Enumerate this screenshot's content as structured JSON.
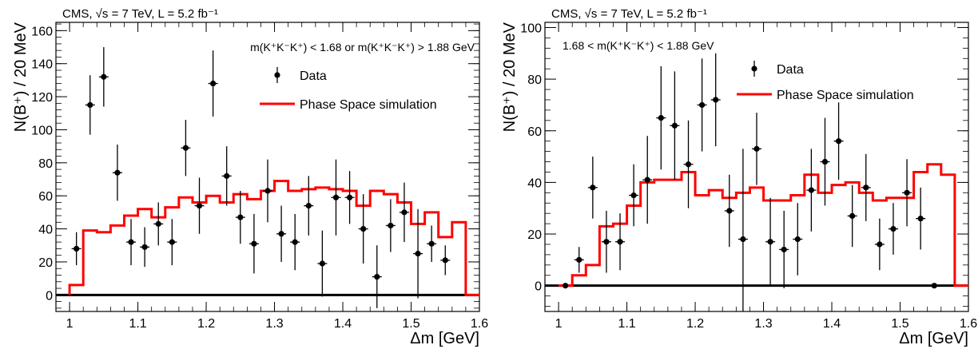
{
  "chart_data": [
    {
      "type": "scatter",
      "header": "CMS, √s = 7 TeV, L = 5.2 fb⁻¹",
      "selection": "m(K⁺K⁻K⁺) < 1.68 or m(K⁺K⁻K⁺) > 1.88 GeV",
      "xlabel": "Δm [GeV]",
      "ylabel": "N(B⁺) / 20 MeV",
      "xlim": [
        0.98,
        1.6
      ],
      "ylim": [
        -10,
        165
      ],
      "xticks": [
        1,
        1.1,
        1.2,
        1.3,
        1.4,
        1.5,
        1.6
      ],
      "xtick_labels": [
        "1",
        "1.1",
        "1.2",
        "1.3",
        "1.4",
        "1.5",
        "1.6"
      ],
      "yticks": [
        0,
        20,
        40,
        60,
        80,
        100,
        120,
        140,
        160
      ],
      "ytick_labels": [
        "0",
        "20",
        "40",
        "60",
        "80",
        "100",
        "120",
        "140",
        "160"
      ],
      "legend": [
        "Data",
        "Phase Space simulation"
      ],
      "series": [
        {
          "name": "Data",
          "x": [
            1.01,
            1.03,
            1.05,
            1.07,
            1.09,
            1.11,
            1.13,
            1.15,
            1.17,
            1.19,
            1.21,
            1.23,
            1.25,
            1.27,
            1.29,
            1.31,
            1.33,
            1.35,
            1.37,
            1.39,
            1.41,
            1.43,
            1.45,
            1.47,
            1.49,
            1.51,
            1.53,
            1.55
          ],
          "y": [
            28,
            115,
            132,
            74,
            32,
            29,
            43,
            32,
            89,
            54,
            128,
            72,
            47,
            31,
            63,
            37,
            32,
            54,
            19,
            59,
            59,
            40,
            11,
            42,
            50,
            25,
            31,
            21
          ],
          "err": [
            10,
            18,
            18,
            17,
            14,
            12,
            13,
            14,
            17,
            17,
            20,
            18,
            16,
            18,
            19,
            17,
            17,
            18,
            20,
            23,
            16,
            21,
            19,
            16,
            18,
            27,
            11,
            9
          ]
        },
        {
          "name": "Phase Space simulation",
          "bin_edges": [
            1.0,
            1.02,
            1.04,
            1.06,
            1.08,
            1.1,
            1.12,
            1.14,
            1.16,
            1.18,
            1.2,
            1.22,
            1.24,
            1.26,
            1.28,
            1.3,
            1.32,
            1.34,
            1.36,
            1.38,
            1.4,
            1.42,
            1.44,
            1.46,
            1.48,
            1.5,
            1.52,
            1.54,
            1.56,
            1.58
          ],
          "values": [
            6,
            39,
            38,
            42,
            48,
            52,
            47,
            53,
            59,
            56,
            60,
            56,
            61,
            58,
            63,
            69,
            63,
            64,
            65,
            64,
            63,
            54,
            63,
            61,
            56,
            43,
            50,
            35,
            44,
            0
          ]
        }
      ]
    },
    {
      "type": "scatter",
      "header": "CMS, √s = 7 TeV, L = 5.2 fb⁻¹",
      "selection": "1.68 < m(K⁺K⁻K⁺) < 1.88 GeV",
      "xlabel": "Δm [GeV]",
      "ylabel": "N(B⁺) / 20 MeV",
      "xlim": [
        0.98,
        1.6
      ],
      "ylim": [
        -10,
        102
      ],
      "xticks": [
        1,
        1.1,
        1.2,
        1.3,
        1.4,
        1.5,
        1.6
      ],
      "xtick_labels": [
        "1",
        "1.1",
        "1.2",
        "1.3",
        "1.4",
        "1.5",
        "1.6"
      ],
      "yticks": [
        0,
        20,
        40,
        60,
        80,
        100
      ],
      "ytick_labels": [
        "0",
        "20",
        "40",
        "60",
        "80",
        "100"
      ],
      "legend": [
        "Data",
        "Phase Space simulation"
      ],
      "series": [
        {
          "name": "Data",
          "x": [
            1.01,
            1.03,
            1.05,
            1.07,
            1.09,
            1.11,
            1.13,
            1.15,
            1.17,
            1.19,
            1.21,
            1.23,
            1.25,
            1.27,
            1.29,
            1.31,
            1.33,
            1.35,
            1.37,
            1.39,
            1.41,
            1.43,
            1.45,
            1.47,
            1.49,
            1.51,
            1.53,
            1.55
          ],
          "y": [
            0,
            10,
            38,
            17,
            17,
            35,
            41,
            65,
            62,
            47,
            70,
            72,
            29,
            18,
            53,
            17,
            14,
            18,
            37,
            48,
            56,
            27,
            38,
            16,
            22,
            36,
            26,
            0
          ],
          "err": [
            0,
            5,
            12,
            12,
            11,
            12,
            17,
            20,
            21,
            17,
            18,
            18,
            14,
            35,
            14,
            17,
            15,
            14,
            16,
            17,
            15,
            12,
            13,
            10,
            10,
            13,
            12,
            0
          ]
        },
        {
          "name": "Phase Space simulation",
          "bin_edges": [
            1.0,
            1.02,
            1.04,
            1.06,
            1.08,
            1.1,
            1.12,
            1.14,
            1.16,
            1.18,
            1.2,
            1.22,
            1.24,
            1.26,
            1.28,
            1.3,
            1.32,
            1.34,
            1.36,
            1.38,
            1.4,
            1.42,
            1.44,
            1.46,
            1.48,
            1.5,
            1.52,
            1.54,
            1.56,
            1.58
          ],
          "values": [
            0,
            4,
            8,
            23,
            24,
            31,
            40,
            41,
            41,
            44,
            35,
            37,
            34,
            36,
            38,
            33,
            33,
            35,
            43,
            36,
            39,
            40,
            36,
            33,
            34,
            34,
            44,
            47,
            43,
            0
          ]
        }
      ]
    }
  ]
}
